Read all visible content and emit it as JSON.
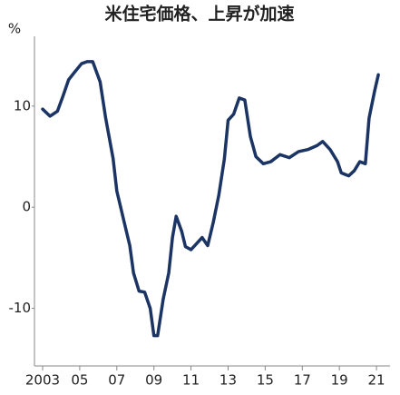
{
  "chart_data": {
    "type": "line",
    "title": "米住宅価格、上昇が加速",
    "y_label": "%",
    "x": [
      2003.0,
      2003.4,
      2003.8,
      2004.1,
      2004.4,
      2004.7,
      2005.1,
      2005.4,
      2005.7,
      2006.1,
      2006.4,
      2006.8,
      2007.0,
      2007.4,
      2007.7,
      2007.9,
      2008.2,
      2008.5,
      2008.8,
      2009.0,
      2009.2,
      2009.5,
      2009.8,
      2010.0,
      2010.2,
      2010.5,
      2010.7,
      2011.0,
      2011.3,
      2011.6,
      2011.9,
      2012.2,
      2012.5,
      2012.8,
      2013.0,
      2013.3,
      2013.6,
      2013.9,
      2014.2,
      2014.5,
      2014.9,
      2015.3,
      2015.8,
      2016.3,
      2016.8,
      2017.3,
      2017.8,
      2018.1,
      2018.5,
      2018.9,
      2019.1,
      2019.5,
      2019.8,
      2020.1,
      2020.4,
      2020.6,
      2020.9,
      2021.1
    ],
    "series": [
      {
        "color": "#1b3464",
        "values": [
          9.7,
          9.0,
          9.5,
          11.0,
          12.6,
          13.3,
          14.2,
          14.4,
          14.4,
          12.4,
          8.8,
          4.8,
          1.6,
          -1.5,
          -3.8,
          -6.5,
          -8.3,
          -8.4,
          -10.0,
          -12.7,
          -12.7,
          -9.1,
          -6.5,
          -3.0,
          -0.9,
          -2.4,
          -3.9,
          -4.2,
          -3.6,
          -3.0,
          -3.8,
          -1.5,
          1.2,
          4.8,
          8.6,
          9.2,
          10.8,
          10.6,
          7.0,
          5.0,
          4.3,
          4.5,
          5.2,
          4.9,
          5.5,
          5.7,
          6.1,
          6.5,
          5.7,
          4.5,
          3.4,
          3.1,
          3.6,
          4.5,
          4.3,
          8.8,
          11.5,
          13.1
        ]
      }
    ],
    "xlim": [
      2002.56,
      2021.73
    ],
    "ylim": [
      -15.7,
      16.9
    ],
    "xticks": [
      {
        "value": 2003,
        "label": "2003"
      },
      {
        "value": 2005,
        "label": "05"
      },
      {
        "value": 2007,
        "label": "07"
      },
      {
        "value": 2009,
        "label": "09"
      },
      {
        "value": 2011,
        "label": "11"
      },
      {
        "value": 2013,
        "label": "13"
      },
      {
        "value": 2015,
        "label": "15"
      },
      {
        "value": 2017,
        "label": "17"
      },
      {
        "value": 2019,
        "label": "19"
      },
      {
        "value": 2021,
        "label": "21"
      }
    ],
    "yticks": [
      10,
      0,
      -10
    ],
    "grid": false
  }
}
